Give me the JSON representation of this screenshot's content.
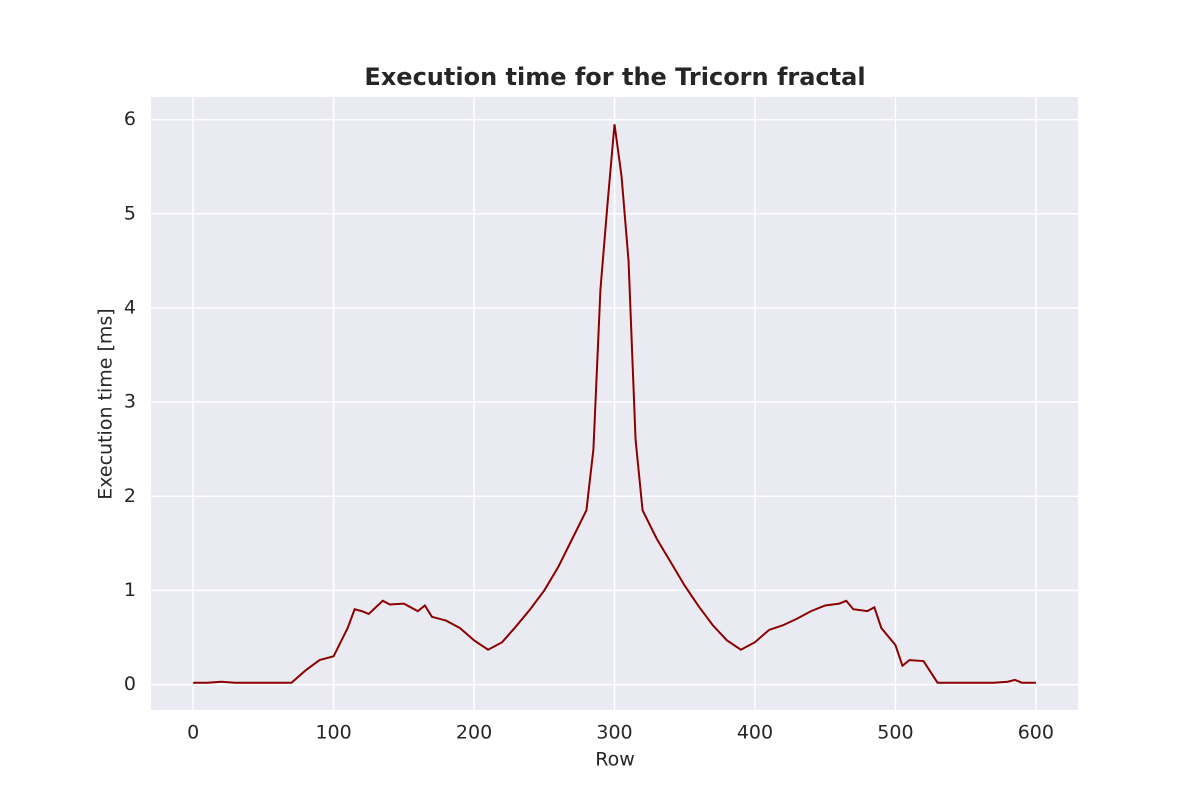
{
  "chart_data": {
    "type": "line",
    "title": "Execution time for the Tricorn fractal",
    "x_label": "Row",
    "y_label": "Execution time [ms]",
    "x": [
      0,
      10,
      20,
      30,
      40,
      50,
      60,
      70,
      80,
      90,
      100,
      105,
      110,
      115,
      120,
      125,
      130,
      135,
      140,
      150,
      160,
      165,
      170,
      180,
      190,
      200,
      210,
      220,
      230,
      240,
      250,
      260,
      270,
      280,
      285,
      290,
      295,
      300,
      305,
      310,
      315,
      320,
      330,
      340,
      350,
      360,
      370,
      380,
      390,
      400,
      410,
      420,
      430,
      440,
      450,
      460,
      465,
      470,
      480,
      485,
      490,
      500,
      505,
      510,
      520,
      530,
      540,
      550,
      560,
      570,
      580,
      585,
      590,
      600
    ],
    "series": [
      {
        "name": "Execution time",
        "color": "#8b0000",
        "values": [
          0.02,
          0.02,
          0.03,
          0.02,
          0.02,
          0.02,
          0.02,
          0.02,
          0.15,
          0.26,
          0.3,
          0.45,
          0.6,
          0.8,
          0.78,
          0.75,
          0.82,
          0.89,
          0.85,
          0.86,
          0.78,
          0.84,
          0.72,
          0.68,
          0.6,
          0.47,
          0.37,
          0.45,
          0.62,
          0.8,
          1.0,
          1.25,
          1.55,
          1.85,
          2.5,
          4.2,
          5.1,
          5.95,
          5.4,
          4.5,
          2.6,
          1.85,
          1.55,
          1.3,
          1.05,
          0.83,
          0.63,
          0.47,
          0.37,
          0.45,
          0.58,
          0.63,
          0.7,
          0.78,
          0.84,
          0.86,
          0.89,
          0.8,
          0.78,
          0.82,
          0.6,
          0.42,
          0.2,
          0.26,
          0.25,
          0.02,
          0.02,
          0.02,
          0.02,
          0.02,
          0.03,
          0.05,
          0.02,
          0.02
        ]
      }
    ],
    "xlim": [
      -30,
      630
    ],
    "ylim": [
      -0.27,
      6.24
    ],
    "xticks": [
      0,
      100,
      200,
      300,
      400,
      500,
      600
    ],
    "yticks": [
      0,
      1,
      2,
      3,
      4,
      5,
      6
    ],
    "grid": true,
    "background": "#eaeaf2"
  }
}
